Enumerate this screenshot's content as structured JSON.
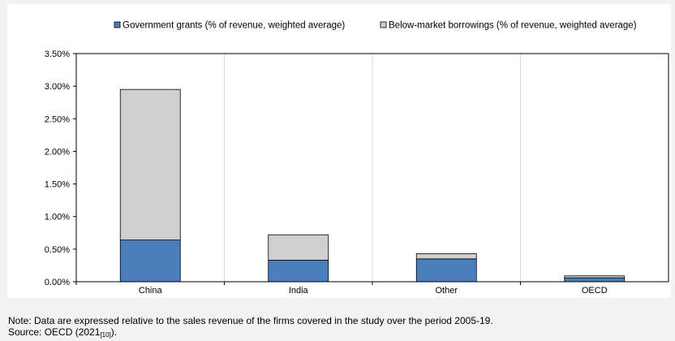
{
  "chart_data": {
    "type": "bar",
    "stacked": true,
    "categories": [
      "China",
      "India",
      "Other",
      "OECD"
    ],
    "series": [
      {
        "name": "Government grants (% of revenue, weighted average)",
        "values": [
          0.64,
          0.33,
          0.35,
          0.06
        ],
        "color": "#4a7ebb"
      },
      {
        "name": "Below-market borrowings (% of revenue, weighted average)",
        "values": [
          2.31,
          0.39,
          0.08,
          0.03
        ],
        "color": "#cfcfcf"
      }
    ],
    "yticks": [
      "0.00%",
      "0.50%",
      "1.00%",
      "1.50%",
      "2.00%",
      "2.50%",
      "3.00%",
      "3.50%"
    ],
    "ylim": [
      0,
      3.5
    ],
    "grid": "vertical category separators",
    "legend": "top"
  },
  "note": {
    "text": "Note: Data are expressed relative to the sales revenue of the firms covered in the study over the period 2005-19.",
    "source_prefix": "Source: OECD (2021",
    "source_ref": "[10]",
    "source_suffix": ")."
  }
}
